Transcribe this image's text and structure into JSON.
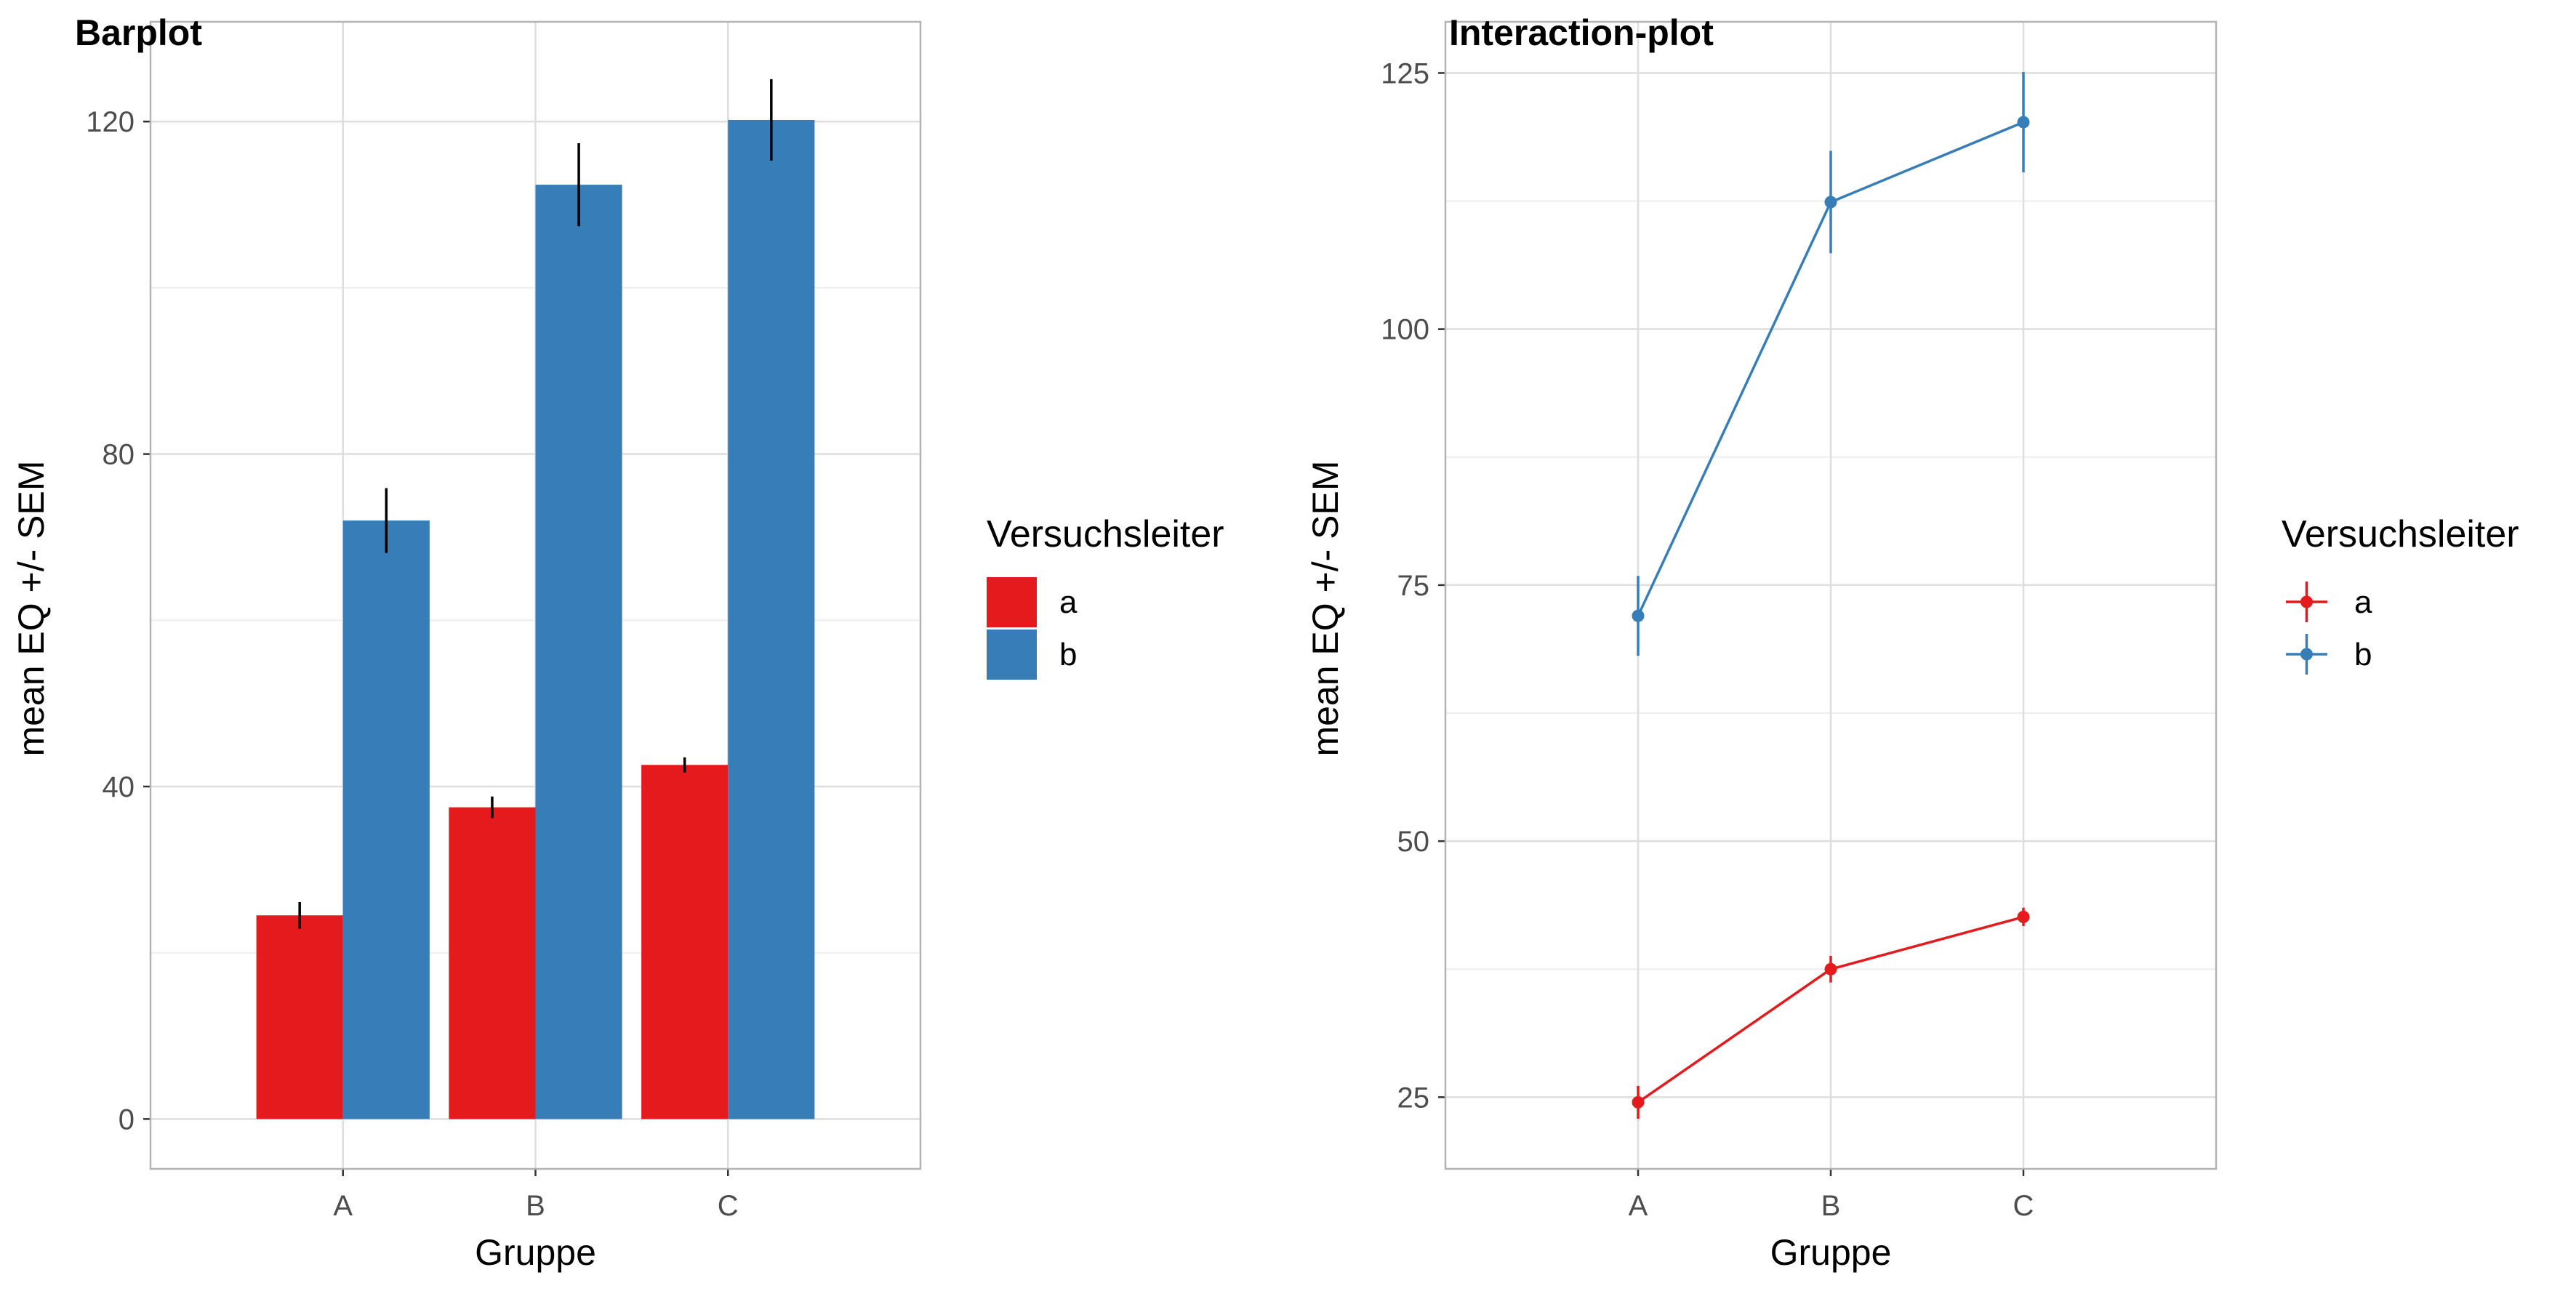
{
  "chart_data": [
    {
      "type": "bar",
      "title": "Barplot",
      "xlabel": "Gruppe",
      "ylabel": "mean EQ +/- SEM",
      "categories": [
        "A",
        "B",
        "C"
      ],
      "ylim": [
        -6,
        132
      ],
      "yticks": [
        0,
        40,
        80,
        120
      ],
      "yticklabels": [
        "0",
        "40",
        "80",
        "120"
      ],
      "grid": true,
      "legend": {
        "title": "Versuchsleiter",
        "position": "right",
        "entries": [
          "a",
          "b"
        ]
      },
      "series": [
        {
          "name": "a",
          "color": "#E41A1C",
          "values": [
            24.5,
            37.5,
            42.6
          ],
          "sem": [
            1.6,
            1.3,
            0.9
          ]
        },
        {
          "name": "b",
          "color": "#377EB8",
          "values": [
            72.0,
            112.4,
            120.2
          ],
          "sem": [
            3.9,
            5.0,
            4.9
          ]
        }
      ]
    },
    {
      "type": "line",
      "title": "Interaction-plot",
      "xlabel": "Gruppe",
      "ylabel": "mean EQ +/- SEM",
      "categories": [
        "A",
        "B",
        "C"
      ],
      "ylim": [
        18,
        130
      ],
      "yticks": [
        25,
        50,
        75,
        100,
        125
      ],
      "yticklabels": [
        "25",
        "50",
        "75",
        "100",
        "125"
      ],
      "grid": true,
      "legend": {
        "title": "Versuchsleiter",
        "position": "right",
        "entries": [
          "a",
          "b"
        ]
      },
      "series": [
        {
          "name": "a",
          "color": "#E41A1C",
          "values": [
            24.5,
            37.5,
            42.6
          ],
          "sem": [
            1.6,
            1.3,
            0.9
          ]
        },
        {
          "name": "b",
          "color": "#377EB8",
          "values": [
            72.0,
            112.4,
            120.2
          ],
          "sem": [
            3.9,
            5.0,
            4.9
          ]
        }
      ]
    }
  ]
}
